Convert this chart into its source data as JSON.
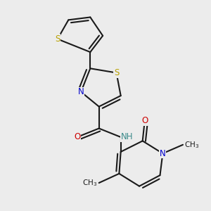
{
  "bg_color": "#ececec",
  "bond_color": "#1a1a1a",
  "bond_lw": 1.5,
  "figsize": [
    3.0,
    3.0
  ],
  "dpi": 100,
  "xlim": [
    0.2,
    3.8
  ],
  "ylim": [
    -0.3,
    3.5
  ]
}
